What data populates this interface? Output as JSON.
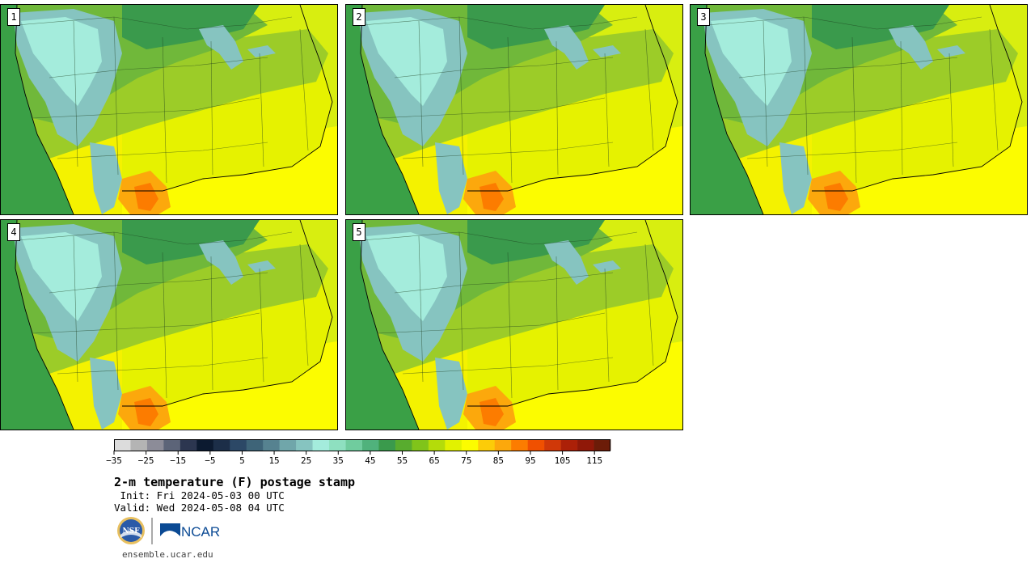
{
  "panels": [
    {
      "label": "1"
    },
    {
      "label": "2"
    },
    {
      "label": "3"
    },
    {
      "label": "4"
    },
    {
      "label": "5"
    }
  ],
  "colorbar": {
    "min": -35,
    "max": 120,
    "step": 5,
    "tick_labels": [
      "−35",
      "−25",
      "−15",
      "−5",
      "5",
      "15",
      "25",
      "35",
      "45",
      "55",
      "65",
      "75",
      "85",
      "95",
      "105",
      "115"
    ],
    "tick_values": [
      -35,
      -25,
      -15,
      -5,
      5,
      15,
      25,
      35,
      45,
      55,
      65,
      75,
      85,
      95,
      105,
      115
    ],
    "colors": [
      "#dcdcdc",
      "#b4b4b4",
      "#8c8c98",
      "#5c6478",
      "#2c3650",
      "#0c1a30",
      "#1c2e48",
      "#2c4866",
      "#3e6478",
      "#568290",
      "#70a6aa",
      "#86c4c0",
      "#a4ecdc",
      "#8ee0c0",
      "#70cc9e",
      "#50b27c",
      "#3a9a4c",
      "#58ac2e",
      "#80c41a",
      "#b4dc0a",
      "#e2f200",
      "#fcfc00",
      "#fccc08",
      "#fca80c",
      "#fc7c00",
      "#f05000",
      "#d03808",
      "#ac2008",
      "#901808",
      "#6c1c08"
    ]
  },
  "header": {
    "title": "2-m temperature (F) postage stamp",
    "init": " Init: Fri 2024-05-03 00 UTC",
    "valid": "Valid: Wed 2024-05-08 04 UTC"
  },
  "logos": {
    "nsf": "NSF",
    "ncar": "NCAR"
  },
  "footer": {
    "url": "ensemble.ucar.edu"
  },
  "map_colors": {
    "ocean_west": "#3aa046",
    "ocean_east": "#d8ee10",
    "gulf": "#fcfc00",
    "north": "#3a9a4c",
    "plains": "#70b83a",
    "midwest": "#9ccc28",
    "southeast": "#e6f200",
    "mountains": "#86c4c0",
    "high_mountains": "#a4ecdc",
    "texas_hot": "#fca80c",
    "texas_hotter": "#fc7c00"
  }
}
